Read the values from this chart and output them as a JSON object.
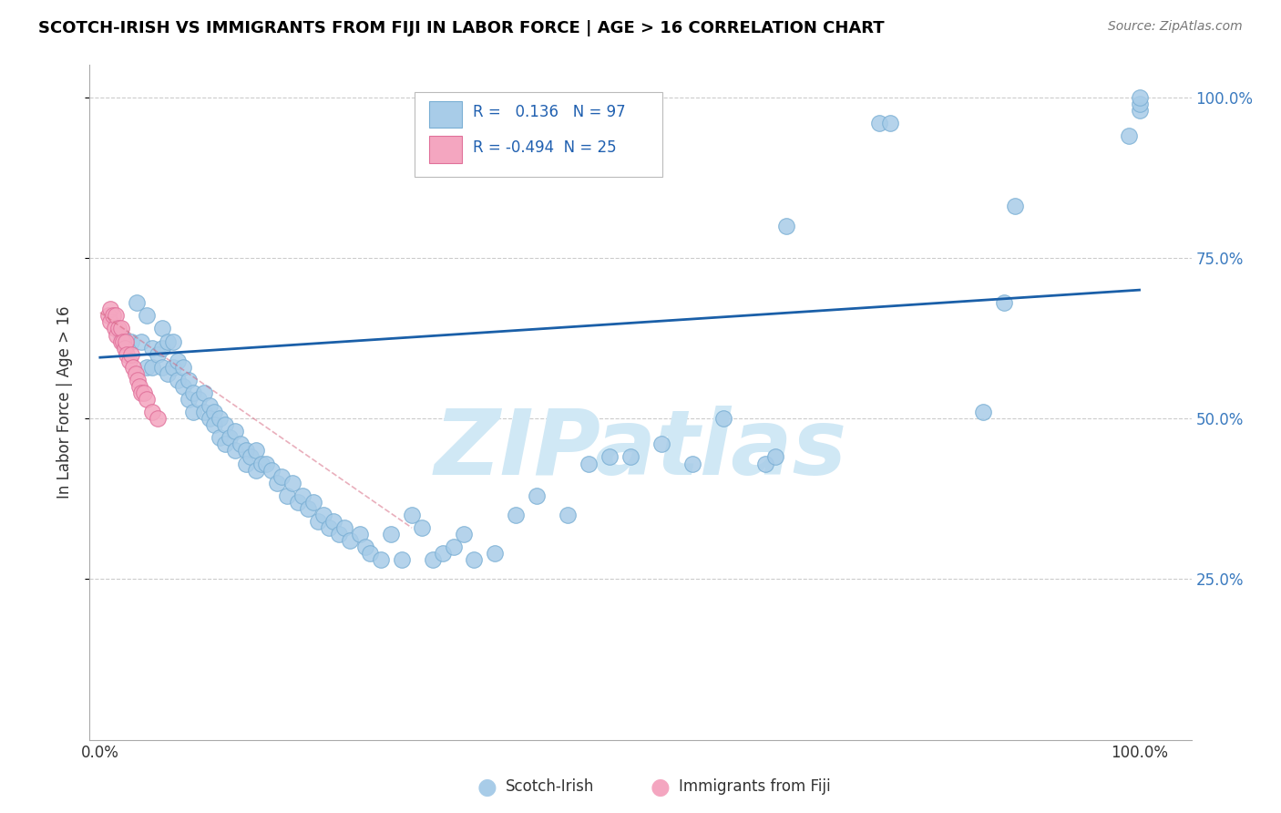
{
  "title": "SCOTCH-IRISH VS IMMIGRANTS FROM FIJI IN LABOR FORCE | AGE > 16 CORRELATION CHART",
  "source": "Source: ZipAtlas.com",
  "ylabel": "In Labor Force | Age > 16",
  "R_blue": 0.136,
  "N_blue": 97,
  "R_pink": -0.494,
  "N_pink": 25,
  "blue_color": "#a8cce8",
  "pink_color": "#f4a6c0",
  "blue_edge": "#7aafd4",
  "pink_edge": "#e0709a",
  "trend_blue_color": "#1a5fa8",
  "trend_pink_color": "#d4607a",
  "watermark_color": "#d0e8f5",
  "legend_labels": [
    "Scotch-Irish",
    "Immigrants from Fiji"
  ],
  "blue_scatter_x": [
    0.02,
    0.03,
    0.035,
    0.04,
    0.045,
    0.045,
    0.05,
    0.05,
    0.055,
    0.06,
    0.06,
    0.06,
    0.065,
    0.065,
    0.07,
    0.07,
    0.075,
    0.075,
    0.08,
    0.08,
    0.085,
    0.085,
    0.09,
    0.09,
    0.095,
    0.1,
    0.1,
    0.105,
    0.105,
    0.11,
    0.11,
    0.115,
    0.115,
    0.12,
    0.12,
    0.125,
    0.13,
    0.13,
    0.135,
    0.14,
    0.14,
    0.145,
    0.15,
    0.15,
    0.155,
    0.16,
    0.165,
    0.17,
    0.175,
    0.18,
    0.185,
    0.19,
    0.195,
    0.2,
    0.205,
    0.21,
    0.215,
    0.22,
    0.225,
    0.23,
    0.235,
    0.24,
    0.25,
    0.255,
    0.26,
    0.27,
    0.28,
    0.29,
    0.3,
    0.31,
    0.32,
    0.33,
    0.34,
    0.35,
    0.36,
    0.38,
    0.4,
    0.42,
    0.45,
    0.47,
    0.49,
    0.51,
    0.54,
    0.57,
    0.6,
    0.64,
    0.65,
    0.66,
    0.75,
    0.76,
    0.85,
    0.87,
    0.88,
    0.99,
    1.0,
    1.0,
    1.0
  ],
  "blue_scatter_y": [
    0.63,
    0.62,
    0.68,
    0.62,
    0.58,
    0.66,
    0.61,
    0.58,
    0.6,
    0.61,
    0.64,
    0.58,
    0.62,
    0.57,
    0.62,
    0.58,
    0.59,
    0.56,
    0.58,
    0.55,
    0.56,
    0.53,
    0.54,
    0.51,
    0.53,
    0.54,
    0.51,
    0.52,
    0.5,
    0.51,
    0.49,
    0.5,
    0.47,
    0.49,
    0.46,
    0.47,
    0.48,
    0.45,
    0.46,
    0.45,
    0.43,
    0.44,
    0.45,
    0.42,
    0.43,
    0.43,
    0.42,
    0.4,
    0.41,
    0.38,
    0.4,
    0.37,
    0.38,
    0.36,
    0.37,
    0.34,
    0.35,
    0.33,
    0.34,
    0.32,
    0.33,
    0.31,
    0.32,
    0.3,
    0.29,
    0.28,
    0.32,
    0.28,
    0.35,
    0.33,
    0.28,
    0.29,
    0.3,
    0.32,
    0.28,
    0.29,
    0.35,
    0.38,
    0.35,
    0.43,
    0.44,
    0.44,
    0.46,
    0.43,
    0.5,
    0.43,
    0.44,
    0.8,
    0.96,
    0.96,
    0.51,
    0.68,
    0.83,
    0.94,
    0.98,
    0.99,
    1.0
  ],
  "pink_scatter_x": [
    0.008,
    0.01,
    0.01,
    0.012,
    0.014,
    0.015,
    0.016,
    0.018,
    0.02,
    0.02,
    0.022,
    0.024,
    0.025,
    0.026,
    0.028,
    0.03,
    0.032,
    0.034,
    0.036,
    0.038,
    0.04,
    0.042,
    0.045,
    0.05,
    0.055
  ],
  "pink_scatter_y": [
    0.66,
    0.67,
    0.65,
    0.66,
    0.64,
    0.66,
    0.63,
    0.64,
    0.62,
    0.64,
    0.62,
    0.61,
    0.62,
    0.6,
    0.59,
    0.6,
    0.58,
    0.57,
    0.56,
    0.55,
    0.54,
    0.54,
    0.53,
    0.51,
    0.5
  ],
  "ylim": [
    0.0,
    1.05
  ],
  "xlim": [
    -0.01,
    1.05
  ],
  "figsize": [
    14.06,
    8.92
  ],
  "dpi": 100
}
